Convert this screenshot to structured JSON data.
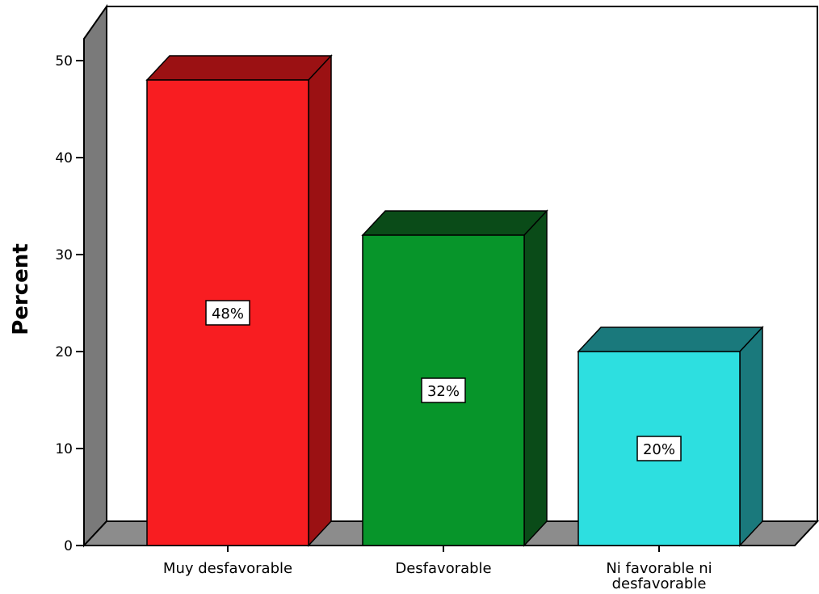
{
  "chart_data": {
    "type": "bar",
    "categories": [
      "Muy desfavorable",
      "Desfavorable",
      "Ni favorable ni desfavorable"
    ],
    "values": [
      48,
      32,
      20
    ],
    "data_labels": [
      "48%",
      "32%",
      "20%"
    ],
    "title": "",
    "xlabel": "",
    "ylabel": "Percent",
    "ylim": [
      0,
      50
    ],
    "yticks": [
      0,
      10,
      20,
      30,
      40,
      50
    ],
    "grid": false,
    "style": "3d",
    "colors": {
      "front": [
        "#f81d21",
        "#07952a",
        "#2ddfe0"
      ],
      "side": [
        "#9b1113",
        "#0a4b18",
        "#1a797c"
      ],
      "wall_side": "#7a7a7a",
      "floor": "#8c8c8c"
    }
  }
}
